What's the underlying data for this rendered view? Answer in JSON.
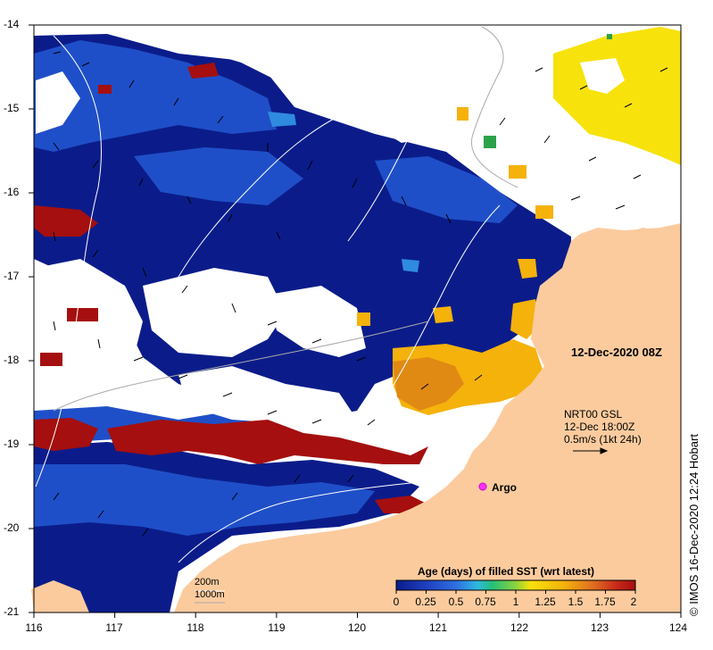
{
  "lat_labels": [
    "-14",
    "-15",
    "-16",
    "-17",
    "-18",
    "-19",
    "-20",
    "-21"
  ],
  "lon_labels": [
    "116",
    "117",
    "118",
    "119",
    "120",
    "121",
    "122",
    "123",
    "124"
  ],
  "date_label": "12-Dec-2020 08Z",
  "vector_legend": {
    "line1": "NRT00 GSL",
    "line2": "12-Dec 18:00Z",
    "line3": "0.5m/s (1kt 24h)"
  },
  "argo_label": "Argo",
  "depth_legend": {
    "d200": "200m",
    "d1000": "1000m"
  },
  "colorbar": {
    "title": "Age (days) of filled SST (wrt latest)",
    "ticks": [
      "0",
      "0.25",
      "0.5",
      "0.75",
      "1",
      "1.25",
      "1.5",
      "1.75",
      "2"
    ]
  },
  "credit": "© IMOS 16-Dec-2020 12:24 Hobart",
  "colors": {
    "land": "#FBCB9E",
    "age_0": "#0B1C8A",
    "age_0_25": "#1F4FC8",
    "age_0_5": "#2F8BE0",
    "age_1_5": "#F5B20B",
    "age_2": "#A50F0F",
    "current_arrow": "#000000"
  }
}
